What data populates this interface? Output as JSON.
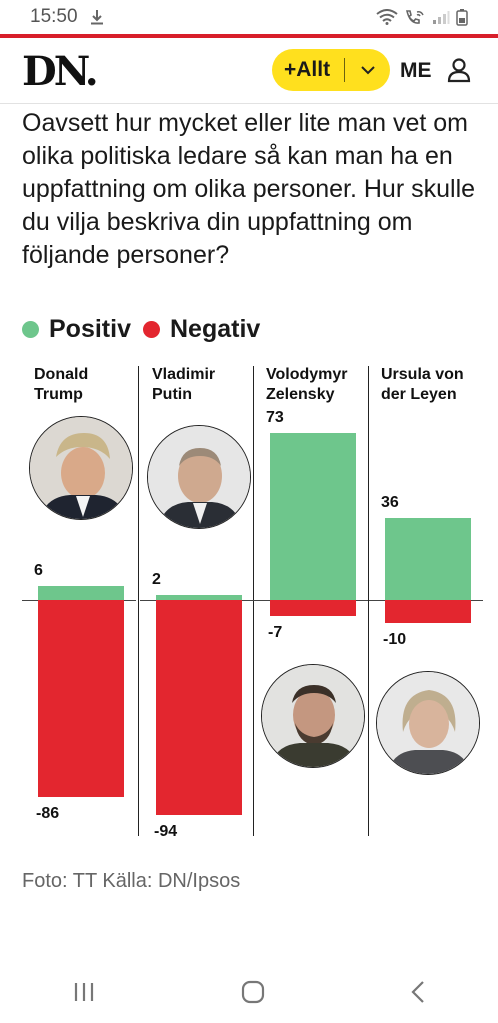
{
  "status": {
    "time": "15:50",
    "download_icon": "download-icon",
    "wifi_icon": "wifi-icon",
    "call_icon": "wifi-call-icon",
    "signal_icon": "signal-icon",
    "battery_icon": "battery-icon"
  },
  "header": {
    "logo": "DN.",
    "pill_label": "+Allt",
    "me_label": "ME",
    "accent": "#ffe01e",
    "rule_color": "#d81e2a"
  },
  "question": "Oavsett hur mycket eller lite man vet om olika politiska ledare så kan man ha en uppfattning om olika personer. Hur skulle du vilja beskriva din uppfattning om följande personer?",
  "legend": [
    {
      "label": "Positiv",
      "color": "#6ec68c"
    },
    {
      "label": "Negativ",
      "color": "#e3262f"
    }
  ],
  "chart_data": {
    "type": "bar",
    "categories": [
      "Donald Trump",
      "Vladimir Putin",
      "Volodymyr Zelensky",
      "Ursula von der Leyen"
    ],
    "category_lines": [
      [
        "Donald",
        "Trump"
      ],
      [
        "Vladimir",
        "Putin"
      ],
      [
        "Volodymyr",
        "Zelensky"
      ],
      [
        "Ursula von",
        "der Leyen"
      ]
    ],
    "series": [
      {
        "name": "Positiv",
        "color": "#6ec68c",
        "values": [
          6,
          2,
          73,
          36
        ]
      },
      {
        "name": "Negativ",
        "color": "#e3262f",
        "values": [
          -86,
          -94,
          -7,
          -10
        ]
      }
    ],
    "ylim": [
      -100,
      100
    ],
    "title": "",
    "xlabel": "",
    "ylabel": ""
  },
  "source": "Foto: TT Källa: DN/Ipsos",
  "nav": {
    "recents_icon": "recents-icon",
    "home_icon": "home-icon",
    "back_icon": "back-icon"
  }
}
